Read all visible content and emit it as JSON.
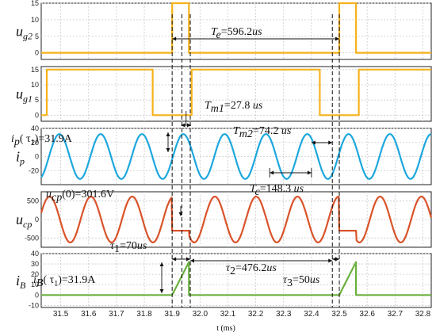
{
  "chart_data": {
    "type": "line",
    "xlabel": "t (ms)",
    "xlim": [
      31.43,
      32.83
    ],
    "xticks": [
      31.5,
      31.6,
      31.7,
      31.8,
      31.9,
      32.0,
      32.1,
      32.2,
      32.3,
      32.4,
      32.5,
      32.6,
      32.7,
      32.8
    ],
    "xtick_labels": [
      "31.5",
      "31.6",
      "31.7",
      "31.8",
      "31.9",
      "32.0",
      "32.1",
      "32.2",
      "32.3",
      "32.4",
      "32.5",
      "32.6",
      "32.7",
      "32.8"
    ],
    "grid": true,
    "colors": {
      "ug2": "#f5b21b",
      "ug1": "#f5b21b",
      "ip": "#1ea7de",
      "ucp": "#d9532a",
      "iB": "#6bb03e"
    },
    "panels": [
      {
        "id": "ug2",
        "ylabel_main": "u",
        "ylabel_sub": "g2",
        "ylim": [
          -2,
          15
        ],
        "yticks": [
          0,
          5,
          10,
          15
        ],
        "ytick_labels": [
          "0",
          "5",
          "10",
          "15"
        ],
        "series": [
          {
            "kind": "step",
            "x": [
              31.43,
              31.9,
              31.9,
              31.96,
              31.96,
              32.5,
              32.5,
              32.56,
              32.56,
              32.83
            ],
            "y": [
              0,
              0,
              15,
              15,
              0,
              0,
              15,
              15,
              0,
              0
            ]
          }
        ]
      },
      {
        "id": "ug1",
        "ylabel_main": "u",
        "ylabel_sub": "g1",
        "ylim": [
          -2,
          16
        ],
        "yticks": [
          0,
          5,
          10,
          15
        ],
        "ytick_labels": [
          "0",
          "5",
          "10",
          "15"
        ],
        "series": [
          {
            "kind": "step",
            "x": [
              31.43,
              31.45,
              31.45,
              31.83,
              31.83,
              31.97,
              31.97,
              32.43,
              32.43,
              32.57,
              32.57,
              32.83
            ],
            "y": [
              0,
              0,
              15,
              15,
              0,
              0,
              15,
              15,
              0,
              0,
              15,
              15
            ]
          }
        ]
      },
      {
        "id": "ip",
        "ylabel_main": "i",
        "ylabel_sub": "p",
        "ylim": [
          -40,
          40
        ],
        "yticks": [
          -20,
          0,
          20,
          40
        ],
        "ytick_labels": [
          "-20",
          "0",
          "20",
          "40"
        ],
        "series": [
          {
            "kind": "wave",
            "amplitude": 31.9,
            "period_ms": 0.1483,
            "phase_ms": 31.94
          }
        ]
      },
      {
        "id": "ucp",
        "ylabel_main": "u",
        "ylabel_sub": "cp",
        "ylim": [
          -750,
          750
        ],
        "yticks": [
          -500,
          0,
          500
        ],
        "ytick_labels": [
          "-500",
          "0",
          "500"
        ],
        "series": [
          {
            "kind": "wave",
            "amplitude": 620,
            "period_ms": 0.1483,
            "phase_ms": 31.905,
            "hold_value": -301.6,
            "hold_windows": [
              [
                31.9,
                31.96
              ],
              [
                32.5,
                32.56
              ]
            ]
          }
        ]
      },
      {
        "id": "iB",
        "ylabel_main": "i",
        "ylabel_sub": "B",
        "ylim": [
          -12,
          40
        ],
        "yticks": [
          -10,
          0,
          10,
          20,
          30,
          40
        ],
        "ytick_labels": [
          "-10",
          "0",
          "10",
          "20",
          "30",
          "40"
        ],
        "series": [
          {
            "kind": "poly",
            "x": [
              31.43,
              31.9,
              31.96,
              31.96,
              32.5,
              32.56,
              32.56,
              32.83
            ],
            "y": [
              0,
              0,
              31.9,
              0,
              0,
              31.9,
              0,
              0
            ]
          }
        ]
      }
    ],
    "markers": {
      "dashed_verticals_ms": [
        31.9,
        31.935,
        31.965,
        32.475,
        32.5
      ]
    },
    "annotations": {
      "Te": {
        "label_main": "T",
        "label_sub": "e",
        "label_value": "=596.2",
        "label_unit": "us",
        "x_from": 31.9,
        "x_to": 32.5
      },
      "Tm1": {
        "label_main": "T",
        "label_sub": "m1",
        "label_value": "=27.8 ",
        "label_unit": "us"
      },
      "Tm2": {
        "label_main": "T",
        "label_sub": "m2",
        "label_value": "=74.2 ",
        "label_unit": "us"
      },
      "Tc": {
        "label_main": "T",
        "label_sub": "c",
        "label_value": "=148.3 ",
        "label_unit": "us"
      },
      "ip_tau1": {
        "label_main": "i",
        "label_sub": "p",
        "label_rest": "( τ",
        "label_rest_sub": "1",
        "label_tail": ")=31.9A"
      },
      "ucp0": {
        "label_main": "u",
        "label_sub": "cp",
        "label_tail": "(0)=301.6V"
      },
      "tau1": {
        "label_main": "τ",
        "label_sub": "1",
        "label_value": "=70",
        "label_unit": "us"
      },
      "tau2": {
        "label_main": "τ",
        "label_sub": "2",
        "label_value": "=476.2",
        "label_unit": "us"
      },
      "tau3": {
        "label_main": "τ",
        "label_sub": "3",
        "label_value": "=50",
        "label_unit": "us"
      },
      "iB_tau1": {
        "label_main": "i",
        "label_sub": "B",
        "label_rest": "( τ",
        "label_rest_sub": "1",
        "label_tail": ")=31.9A"
      }
    }
  }
}
